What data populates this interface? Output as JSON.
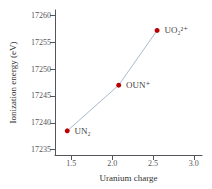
{
  "chart_data": {
    "type": "line",
    "xlabel": "Uranium charge",
    "ylabel": "Ionization energy (eV)",
    "x": [
      1.45,
      2.08,
      2.55
    ],
    "values": [
      17238.5,
      17247.0,
      17257.2
    ],
    "color": "#aabbcc",
    "colors": [
      "#bb0000",
      "#bb0000",
      "#bb0000"
    ],
    "marker": "circle",
    "line_style": "solid",
    "xlim": [
      1.3,
      3.1
    ],
    "ylim": [
      17234,
      17261
    ],
    "xticks": [
      1.5,
      {
        "value": 2.0,
        "label": "2.0"
      },
      2.5,
      {
        "value": 3.0,
        "label": "3.0"
      }
    ],
    "yticks": [
      17235,
      17240,
      17245,
      17250,
      17255,
      17260
    ],
    "grid": false,
    "annotations": [
      {
        "text": "UN₂",
        "x": 1.54,
        "y": 17238.5
      },
      {
        "text": "OUN⁺",
        "x": 2.17,
        "y": 17247.0
      },
      {
        "text": "UO₂²⁺",
        "x": 2.64,
        "y": 17257.2
      }
    ]
  }
}
